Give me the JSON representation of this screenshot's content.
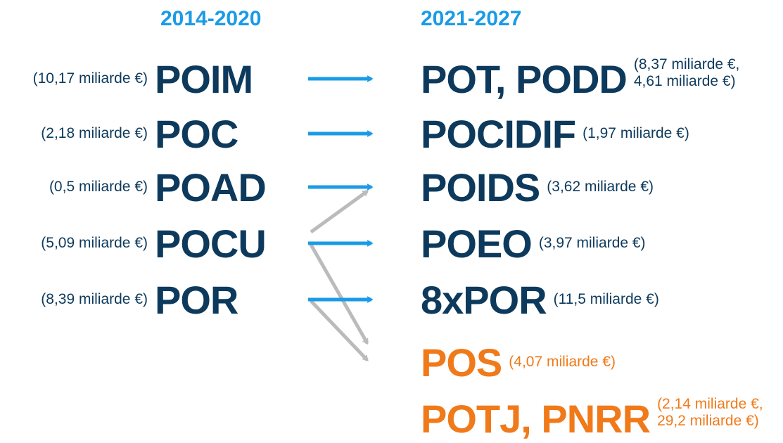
{
  "header": {
    "left": "2014-2020",
    "right": "2021-2027"
  },
  "left_items": [
    {
      "name": "POIM",
      "amount": "(10,17 miliarde €)"
    },
    {
      "name": "POC",
      "amount": "(2,18 miliarde €)"
    },
    {
      "name": "POAD",
      "amount": "(0,5 miliarde €)"
    },
    {
      "name": "POCU",
      "amount": "(5,09 miliarde €)"
    },
    {
      "name": "POR",
      "amount": "(8,39 miliarde €)"
    }
  ],
  "right_items": [
    {
      "name": "POT, PODD",
      "amount": [
        "(8,37 miliarde €,",
        "4,61 miliarde €)"
      ]
    },
    {
      "name": "POCIDIF",
      "amount": [
        "(1,97 miliarde €)"
      ]
    },
    {
      "name": "POIDS",
      "amount": [
        "(3,62 miliarde €)"
      ]
    },
    {
      "name": "POEO",
      "amount": [
        "(3,97 miliarde €)"
      ]
    },
    {
      "name": "8xPOR",
      "amount": [
        "(11,5 miliarde €)"
      ]
    },
    {
      "name": "POS",
      "amount": [
        "(4,07 miliarde €)"
      ],
      "new": true
    },
    {
      "name": "POTJ, PNRR",
      "amount": [
        "(2,14 miliarde €,",
        "29,2 miliarde €)"
      ],
      "new": true
    }
  ]
}
